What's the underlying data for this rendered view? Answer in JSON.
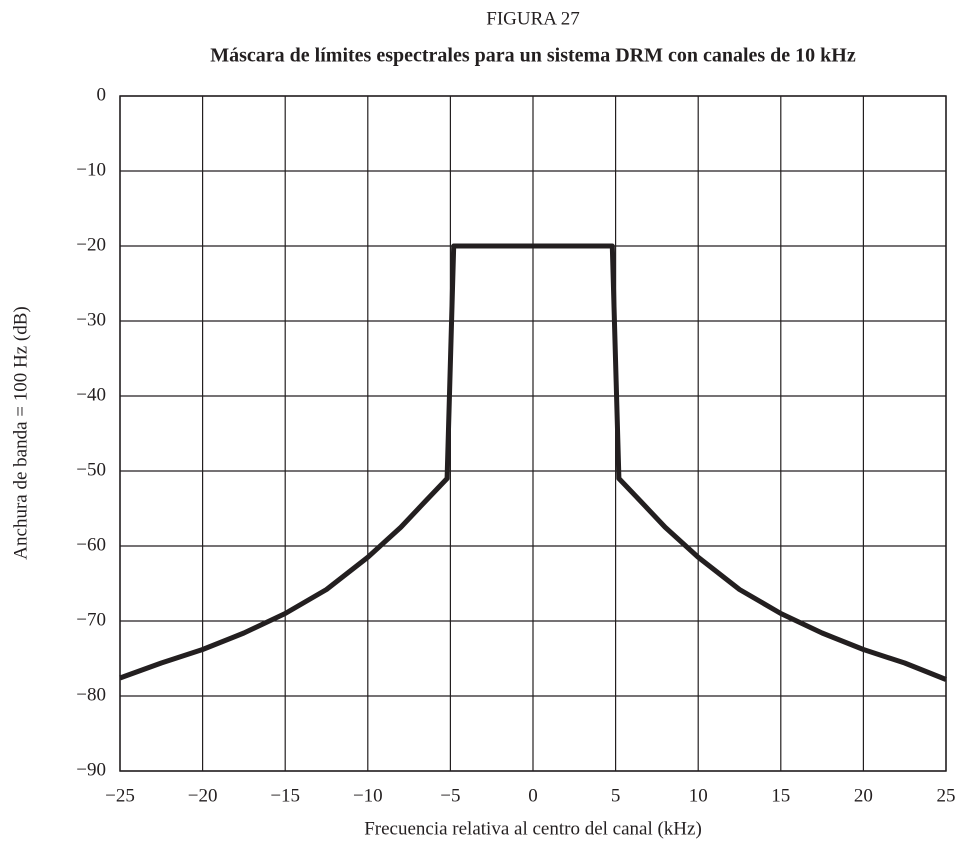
{
  "chart_data": {
    "type": "line",
    "title": "FIGURA 27",
    "subtitle": "Máscara de límites espectrales para un sistema DRM con canales de 10 kHz",
    "x_label": "Frecuencia relativa al centro del canal (kHz)",
    "y_label": "Anchura de banda = 100 Hz (dB)",
    "x": [
      -25,
      -22.5,
      -20,
      -17.5,
      -15,
      -12.5,
      -10,
      -8,
      -6.5,
      -5.2,
      -4.8,
      4.8,
      5.2,
      6.5,
      8,
      10,
      12.5,
      15,
      17.5,
      20,
      22.5,
      25
    ],
    "values": [
      -77.6,
      -75.6,
      -73.8,
      -71.6,
      -69,
      -65.8,
      -61.5,
      -57.5,
      -54,
      -51,
      -20,
      -20,
      -51,
      -54,
      -57.5,
      -61.5,
      -65.8,
      -69,
      -71.6,
      -73.8,
      -75.6,
      -77.8
    ],
    "color": "#231f20",
    "xlim": [
      -25,
      25
    ],
    "xticks": [
      {
        "value": -25,
        "label": "−25"
      },
      {
        "value": -20,
        "label": "−20"
      },
      {
        "value": -15,
        "label": "−15"
      },
      {
        "value": -10,
        "label": "−10"
      },
      {
        "value": -5,
        "label": "−5"
      },
      0,
      5,
      10,
      15,
      20,
      25
    ],
    "ylim": [
      -90,
      0
    ],
    "yticks": [
      0,
      {
        "value": -10,
        "label": "−10"
      },
      {
        "value": -20,
        "label": "−20"
      },
      {
        "value": -30,
        "label": "−30"
      },
      {
        "value": -40,
        "label": "−40"
      },
      {
        "value": -50,
        "label": "−50"
      },
      {
        "value": -60,
        "label": "−60"
      },
      {
        "value": -70,
        "label": "−70"
      },
      {
        "value": -80,
        "label": "−80"
      },
      {
        "value": -90,
        "label": "−90"
      }
    ],
    "grid": true
  }
}
